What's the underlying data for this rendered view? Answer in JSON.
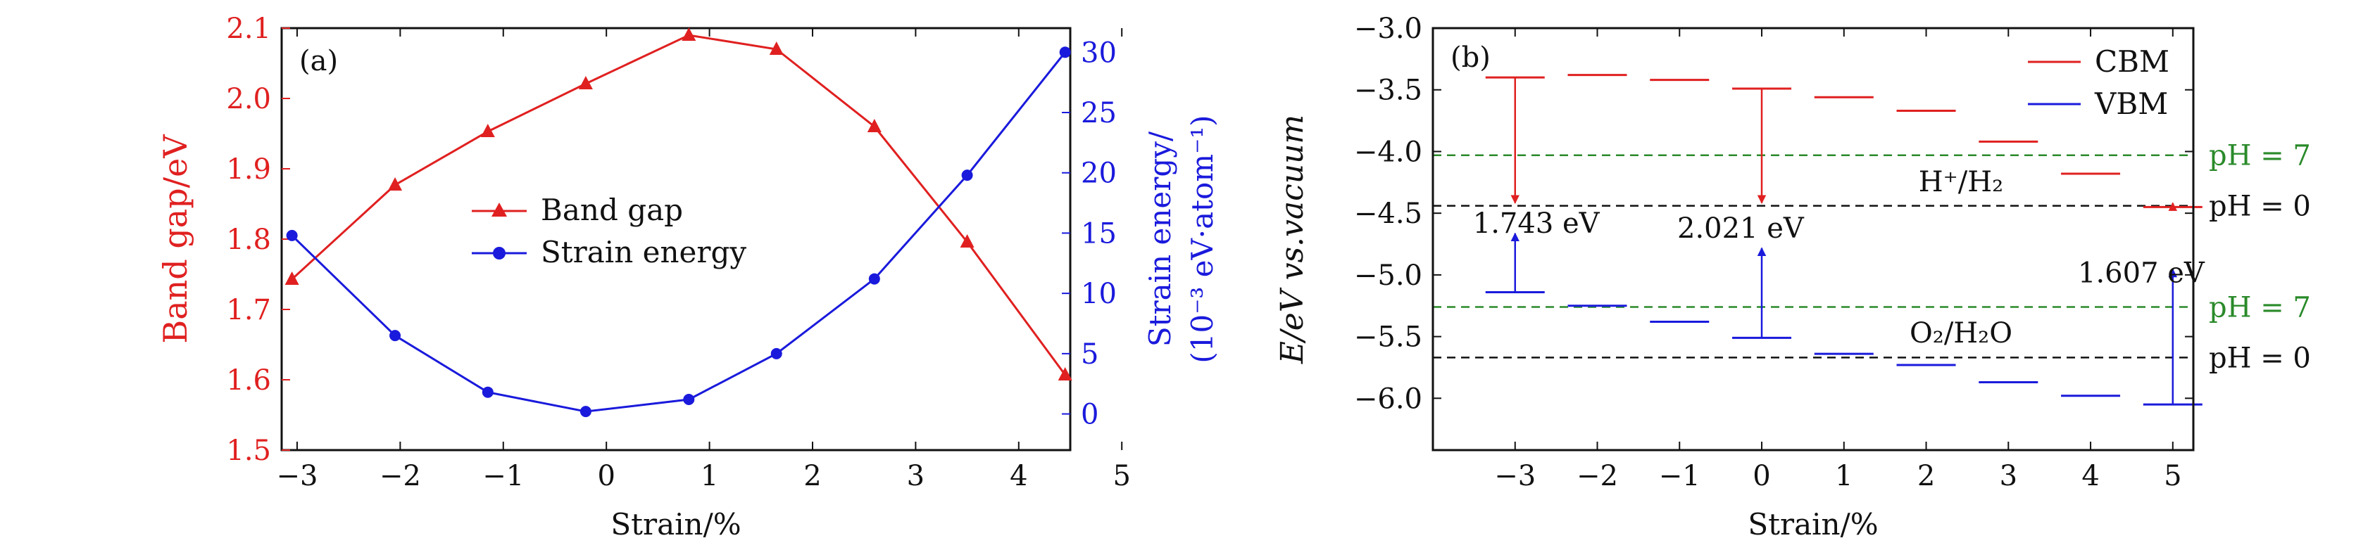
{
  "colors": {
    "red": "#e02020",
    "blue": "#1a1adc",
    "green": "#2a8a2a",
    "black": "#111111"
  },
  "chart_data": [
    {
      "type": "line",
      "panel_label": "(a)",
      "xlabel": "Strain/%",
      "ylabel_left": "Band gap/eV",
      "ylabel_right_line1": "Strain energy/",
      "ylabel_right_line2": "(10⁻³ eV·atom⁻¹)",
      "xlim": [
        -3.15,
        4.5
      ],
      "ylim_left": [
        1.5,
        2.1
      ],
      "ylim_right": [
        -3,
        32
      ],
      "x_ticks": [
        "−3",
        "−2",
        "−1",
        "0",
        "1",
        "2",
        "3",
        "4",
        "5"
      ],
      "y_ticks_left": [
        "1.5",
        "1.6",
        "1.7",
        "1.8",
        "1.9",
        "2.0",
        "2.1"
      ],
      "y_ticks_right": [
        "0",
        "5",
        "10",
        "15",
        "20",
        "25",
        "30"
      ],
      "legend_position": "center",
      "series": [
        {
          "name": "Band gap",
          "axis": "left",
          "marker": "triangle",
          "x": [
            -3.05,
            -2.05,
            -1.15,
            -0.2,
            0.8,
            1.65,
            2.6,
            3.5,
            4.45
          ],
          "y": [
            1.743,
            1.877,
            1.953,
            2.021,
            2.09,
            2.07,
            1.96,
            1.796,
            1.607
          ]
        },
        {
          "name": "Strain energy",
          "axis": "right",
          "marker": "circle",
          "x": [
            -3.05,
            -2.05,
            -1.15,
            -0.2,
            0.8,
            1.65,
            2.6,
            3.5,
            4.45
          ],
          "y": [
            14.8,
            6.5,
            1.8,
            0.2,
            1.2,
            5.0,
            11.2,
            19.8,
            30.0
          ]
        }
      ]
    },
    {
      "type": "line",
      "panel_label": "(b)",
      "xlabel": "Strain/%",
      "ylabel": "E/eV  vs.vacuum",
      "xlim": [
        -4.0,
        5.25
      ],
      "ylim": [
        -6.42,
        -3.0
      ],
      "x_ticks": [
        "−3",
        "−2",
        "−1",
        "0",
        "1",
        "2",
        "3",
        "4",
        "5"
      ],
      "y_ticks": [
        "−3.0",
        "−3.5",
        "−4.0",
        "−4.5",
        "−5.0",
        "−5.5",
        "−6.0"
      ],
      "legend_position": "top-right",
      "series": [
        {
          "name": "CBM",
          "x": [
            -3,
            -2,
            -1,
            0,
            1,
            2,
            3,
            4,
            5
          ],
          "y": [
            -3.4,
            -3.38,
            -3.42,
            -3.49,
            -3.56,
            -3.67,
            -3.92,
            -4.18,
            -4.45
          ]
        },
        {
          "name": "VBM",
          "x": [
            -3,
            -2,
            -1,
            0,
            1,
            2,
            3,
            4,
            5
          ],
          "y": [
            -5.14,
            -5.25,
            -5.38,
            -5.51,
            -5.64,
            -5.73,
            -5.87,
            -5.98,
            -6.05
          ]
        }
      ],
      "reference_lines": [
        {
          "label": "pH = 7",
          "y": -4.03,
          "color": "green"
        },
        {
          "label": "pH = 0",
          "y": -4.44,
          "color": "black"
        },
        {
          "label": "pH = 7",
          "y": -5.26,
          "color": "green"
        },
        {
          "label": "pH = 0",
          "y": -5.67,
          "color": "black"
        }
      ],
      "redox_labels": {
        "h_couple": "H⁺/H₂",
        "o_couple": "O₂/H₂O"
      },
      "gap_annotations": [
        {
          "x": -3,
          "text": "1.743 eV"
        },
        {
          "x": 0,
          "text": "2.021 eV"
        },
        {
          "x": 5,
          "text": "1.607 eV"
        }
      ]
    }
  ]
}
